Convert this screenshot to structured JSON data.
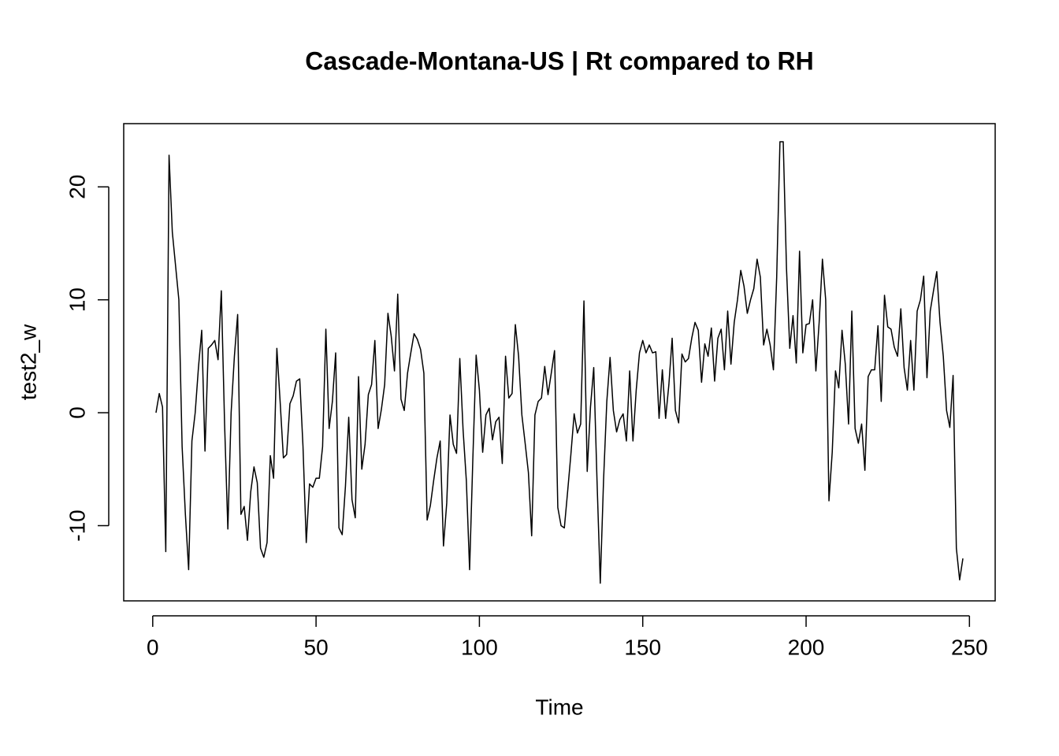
{
  "chart_data": {
    "type": "line",
    "title": "Cascade-Montana-US | Rt compared to RH",
    "x_label": "Time",
    "y_label": "test2_w",
    "color": "#000000",
    "x": [
      1,
      2,
      3,
      4,
      5,
      6,
      7,
      8,
      9,
      10,
      11,
      12,
      13,
      14,
      15,
      16,
      17,
      18,
      19,
      20,
      21,
      22,
      23,
      24,
      25,
      26,
      27,
      28,
      29,
      30,
      31,
      32,
      33,
      34,
      35,
      36,
      37,
      38,
      39,
      40,
      41,
      42,
      43,
      44,
      45,
      46,
      47,
      48,
      49,
      50,
      51,
      52,
      53,
      54,
      55,
      56,
      57,
      58,
      59,
      60,
      61,
      62,
      63,
      64,
      65,
      66,
      67,
      68,
      69,
      70,
      71,
      72,
      73,
      74,
      75,
      76,
      77,
      78,
      79,
      80,
      81,
      82,
      83,
      84,
      85,
      86,
      87,
      88,
      89,
      90,
      91,
      92,
      93,
      94,
      95,
      96,
      97,
      98,
      99,
      100,
      101,
      102,
      103,
      104,
      105,
      106,
      107,
      108,
      109,
      110,
      111,
      112,
      113,
      114,
      115,
      116,
      117,
      118,
      119,
      120,
      121,
      122,
      123,
      124,
      125,
      126,
      127,
      128,
      129,
      130,
      131,
      132,
      133,
      134,
      135,
      136,
      137,
      138,
      139,
      140,
      141,
      142,
      143,
      144,
      145,
      146,
      147,
      148,
      149,
      150,
      151,
      152,
      153,
      154,
      155,
      156,
      157,
      158,
      159,
      160,
      161,
      162,
      163,
      164,
      165,
      166,
      167,
      168,
      169,
      170,
      171,
      172,
      173,
      174,
      175,
      176,
      177,
      178,
      179,
      180,
      181,
      182,
      183,
      184,
      185,
      186,
      187,
      188,
      189,
      190,
      191,
      192,
      193,
      194,
      195,
      196,
      197,
      198,
      199,
      200,
      201,
      202,
      203,
      204,
      205,
      206,
      207,
      208,
      209,
      210,
      211,
      212,
      213,
      214,
      215,
      216,
      217,
      218,
      219,
      220,
      221,
      222,
      223,
      224,
      225,
      226,
      227,
      228,
      229,
      230,
      231,
      232,
      233,
      234,
      235,
      236,
      237,
      238,
      239,
      240,
      241,
      242,
      243,
      244,
      245,
      246,
      247,
      248
    ],
    "values": [
      0,
      1.7,
      0.5,
      -12.3,
      22.8,
      16,
      13,
      10,
      -3,
      -9,
      -13.9,
      -2.5,
      0,
      4,
      7.3,
      -3.4,
      5.7,
      6,
      6.4,
      4.7,
      10.8,
      -1,
      -10.3,
      0,
      5,
      8.7,
      -9,
      -8.3,
      -11.3,
      -7,
      -4.8,
      -6.2,
      -12,
      -12.8,
      -11.5,
      -3.8,
      -5.8,
      5.7,
      1,
      -4,
      -3.7,
      0.8,
      1.5,
      2.8,
      3,
      -3,
      -11.5,
      -6.3,
      -6.6,
      -5.8,
      -5.8,
      -3,
      7.4,
      -1.4,
      1,
      5.3,
      -10.2,
      -10.8,
      -6.5,
      -0.4,
      -7.7,
      -9.3,
      3.2,
      -5,
      -2.8,
      1.6,
      2.5,
      6.4,
      -1.4,
      0.3,
      2.5,
      8.8,
      6.8,
      3.7,
      10.5,
      1.2,
      0.2,
      3.5,
      5.3,
      7,
      6.5,
      5.6,
      3.5,
      -9.5,
      -8.2,
      -6,
      -4,
      -2.5,
      -11.8,
      -8,
      -0.2,
      -2.8,
      -3.6,
      4.8,
      -1.5,
      -6,
      -13.9,
      -4,
      5.1,
      2,
      -3.5,
      -0.2,
      0.4,
      -2.4,
      -0.8,
      -0.4,
      -4.5,
      5,
      1.3,
      1.7,
      7.8,
      5,
      -0.2,
      -2.7,
      -5.3,
      -10.9,
      -0.2,
      1,
      1.3,
      4.1,
      1.6,
      3.5,
      5.5,
      -8.4,
      -10,
      -10.2,
      -7,
      -3.7,
      -0.1,
      -1.8,
      -1,
      9.9,
      -5.2,
      0.5,
      4,
      -6,
      -15.1,
      -6,
      1,
      4.9,
      0.2,
      -1.7,
      -0.6,
      -0.1,
      -2.5,
      3.7,
      -2.5,
      2,
      5.3,
      6.4,
      5.3,
      6,
      5.3,
      5.4,
      -0.5,
      3.8,
      -0.5,
      2.5,
      6.6,
      0.2,
      -0.9,
      5.2,
      4.5,
      4.8,
      6.6,
      8,
      7.3,
      2.7,
      6.1,
      5,
      7.5,
      2.8,
      6.6,
      7.4,
      3.8,
      9,
      4.3,
      8,
      10,
      12.6,
      11.2,
      8.8,
      10,
      11,
      13.6,
      12,
      6,
      7.4,
      6,
      3.8,
      12,
      24,
      24,
      12.8,
      5.7,
      8.6,
      4.4,
      14.3,
      5.3,
      7.8,
      7.9,
      10,
      3.7,
      8,
      13.6,
      10,
      -7.8,
      -3.5,
      3.7,
      2.2,
      7.3,
      4.3,
      -1,
      9,
      -1.4,
      -2.7,
      -1,
      -5.1,
      3.2,
      3.8,
      3.8,
      7.7,
      1,
      10.4,
      7.6,
      7.4,
      5.8,
      5,
      9.2,
      4,
      2,
      6.4,
      2,
      9,
      10,
      12.1,
      3.1,
      9,
      10.8,
      12.5,
      8,
      5,
      0.2,
      -1.3,
      3.3,
      -12,
      -14.8,
      -12.9
    ],
    "xlim": [
      -8.88,
      257.88
    ],
    "ylim": [
      -16.66,
      25.6
    ],
    "xticks": [
      0,
      50,
      100,
      150,
      200,
      250
    ],
    "yticks": [
      -10,
      0,
      10,
      20
    ]
  }
}
